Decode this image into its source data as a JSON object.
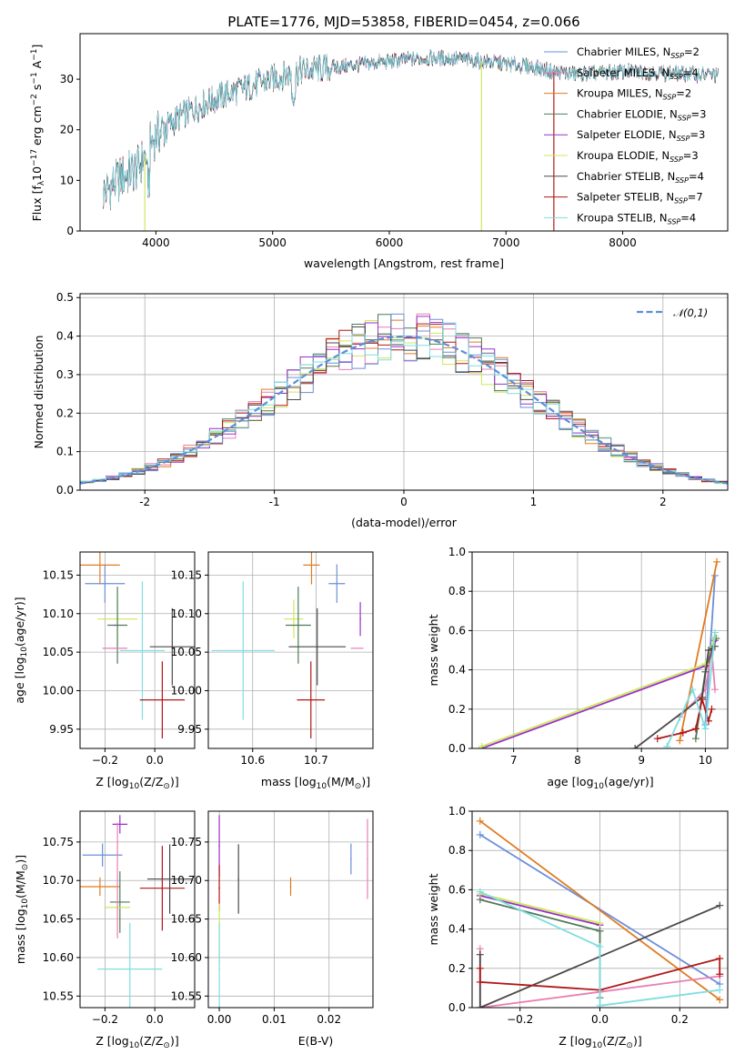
{
  "colors": {
    "chabrier_miles": "#6b8fd9",
    "salpeter_miles": "#e87fb4",
    "kroupa_miles": "#e07b20",
    "chabrier_elodie": "#4f7a55",
    "salpeter_elodie": "#9a30c8",
    "kroupa_elodie": "#cde85a",
    "chabrier_stelib": "#4a4a4a",
    "salpeter_stelib": "#b01818",
    "kroupa_stelib": "#7fdde0",
    "normal_curve": "#5b8fd6"
  },
  "models": [
    {
      "key": "chabrier_miles",
      "label": "Chabrier MILES, N",
      "n": "=2"
    },
    {
      "key": "salpeter_miles",
      "label": "Salpeter MILES, N",
      "n": "=4"
    },
    {
      "key": "kroupa_miles",
      "label": "Kroupa MILES, N",
      "n": "=2"
    },
    {
      "key": "chabrier_elodie",
      "label": "Chabrier ELODIE, N",
      "n": "=3"
    },
    {
      "key": "salpeter_elodie",
      "label": "Salpeter ELODIE, N",
      "n": "=3"
    },
    {
      "key": "kroupa_elodie",
      "label": "Kroupa ELODIE, N",
      "n": "=3"
    },
    {
      "key": "chabrier_stelib",
      "label": "Chabrier STELIB, N",
      "n": "=4"
    },
    {
      "key": "salpeter_stelib",
      "label": "Salpeter STELIB, N",
      "n": "=7"
    },
    {
      "key": "kroupa_stelib",
      "label": "Kroupa STELIB, N",
      "n": "=4"
    }
  ],
  "legend_subscript": "SSP",
  "chart_data": [
    {
      "type": "line",
      "title": "PLATE=1776, MJD=53858, FIBERID=0454, z=0.066",
      "xlabel": "wavelength [Angstrom, rest frame]",
      "ylabel": "Flux [f",
      "ylabel_units": "10",
      "ylabel_exp": "−17",
      "ylabel_rest": " erg cm",
      "ylabel_exp2": "−2",
      "ylabel_s": " s",
      "ylabel_exp3": "−1",
      "ylabel_end": " A",
      "ylabel_exp4": "−1",
      "ylabel_close": "]",
      "xlim": [
        3350,
        8900
      ],
      "ylim": [
        0,
        39
      ],
      "xticks": [
        4000,
        5000,
        6000,
        7000,
        8000
      ],
      "yticks": [
        0,
        10,
        20,
        30
      ],
      "envelope_x": [
        3550,
        3700,
        3850,
        4000,
        4200,
        4400,
        4600,
        4800,
        5000,
        5200,
        5400,
        5600,
        5800,
        6000,
        6200,
        6400,
        6600,
        6800,
        7000,
        7200,
        7400,
        7600,
        7800,
        8000,
        8200,
        8400,
        8600,
        8800
      ],
      "envelope_y": [
        7.5,
        10.5,
        12.5,
        19.0,
        22.5,
        25.0,
        27.0,
        28.5,
        30.0,
        31.5,
        32.0,
        32.5,
        33.0,
        33.5,
        34.0,
        34.2,
        34.0,
        33.5,
        33.0,
        32.5,
        31.5,
        31.0,
        31.2,
        31.5,
        31.4,
        31.2,
        31.0,
        30.8
      ]
    },
    {
      "type": "step",
      "xlabel": "(data-model)/error",
      "ylabel": "Normed distribution",
      "xlim": [
        -2.5,
        2.5
      ],
      "ylim": [
        0,
        0.51
      ],
      "xticks": [
        -2,
        -1,
        0,
        1,
        2
      ],
      "yticks": [
        0.0,
        0.1,
        0.2,
        0.3,
        0.4,
        0.5
      ],
      "bin_width": 0.1,
      "legend": "𝒩(0,1)"
    },
    {
      "type": "errorbar",
      "xlabel": "Z [log",
      "xlabel_sub": "10",
      "xlabel_end": "(Z/Z",
      "xlabel_close": ")]",
      "ylabel": "age  [log",
      "ylabel_sub": "10",
      "ylabel_end": "(age/yr)]",
      "xlim": [
        -0.3,
        0.16
      ],
      "ylim": [
        9.925,
        10.18
      ],
      "xticks": [
        -0.2,
        0.0
      ],
      "xticklabels": [
        "−0.2",
        "0.0"
      ],
      "yticks": [
        9.95,
        10.0,
        10.05,
        10.1,
        10.15
      ],
      "yticklabels": [
        "9.95",
        "10.00",
        "10.05",
        "10.10",
        "10.15"
      ],
      "points": [
        {
          "key": "chabrier_miles",
          "x": -0.2,
          "y": 10.139,
          "xerr": 0.08,
          "yerr": 0.025
        },
        {
          "key": "kroupa_miles",
          "x": -0.22,
          "y": 10.163,
          "xerr": 0.08,
          "yerr": 0.025
        },
        {
          "key": "kroupa_elodie",
          "x": -0.15,
          "y": 10.093,
          "xerr": 0.08,
          "yerr": 0.025
        },
        {
          "key": "chabrier_elodie",
          "x": -0.15,
          "y": 10.085,
          "xerr": 0.04,
          "yerr": 0.05
        },
        {
          "key": "salpeter_elodie",
          "x": -0.16,
          "y": 10.085,
          "xerr": 0.0,
          "yerr": 0.0
        },
        {
          "key": "salpeter_miles",
          "x": -0.16,
          "y": 10.055,
          "xerr": 0.05,
          "yerr": 0.0
        },
        {
          "key": "kroupa_stelib",
          "x": -0.05,
          "y": 10.052,
          "xerr": 0.09,
          "yerr": 0.09
        },
        {
          "key": "chabrier_stelib",
          "x": 0.07,
          "y": 10.057,
          "xerr": 0.09,
          "yerr": 0.05
        },
        {
          "key": "salpeter_stelib",
          "x": 0.03,
          "y": 9.988,
          "xerr": 0.09,
          "yerr": 0.05
        }
      ]
    },
    {
      "type": "errorbar",
      "xlabel": "mass [log",
      "xlabel_sub": "10",
      "xlabel_end": "(M/M",
      "xlabel_close": ")]",
      "xlim": [
        10.53,
        10.79
      ],
      "ylim": [
        9.925,
        10.18
      ],
      "xticks": [
        10.6,
        10.7
      ],
      "xticklabels": [
        "10.6",
        "10.7"
      ],
      "yticks": [
        9.95,
        10.0,
        10.05,
        10.1,
        10.15
      ],
      "yticklabels": [
        "9.95",
        "10.00",
        "10.05",
        "10.10",
        "10.15"
      ],
      "points": [
        {
          "key": "kroupa_miles",
          "x": 10.693,
          "y": 10.163,
          "xerr": 0.013,
          "yerr": 0.025
        },
        {
          "key": "chabrier_miles",
          "x": 10.733,
          "y": 10.139,
          "xerr": 0.013,
          "yerr": 0.025
        },
        {
          "key": "salpeter_elodie",
          "x": 10.77,
          "y": 10.093,
          "xerr": 0.0,
          "yerr": 0.022
        },
        {
          "key": "kroupa_elodie",
          "x": 10.665,
          "y": 10.093,
          "xerr": 0.015,
          "yerr": 0.025
        },
        {
          "key": "chabrier_elodie",
          "x": 10.672,
          "y": 10.085,
          "xerr": 0.02,
          "yerr": 0.05
        },
        {
          "key": "salpeter_miles",
          "x": 10.765,
          "y": 10.055,
          "xerr": 0.01,
          "yerr": 0.0
        },
        {
          "key": "kroupa_stelib",
          "x": 10.585,
          "y": 10.052,
          "xerr": 0.05,
          "yerr": 0.09
        },
        {
          "key": "chabrier_stelib",
          "x": 10.702,
          "y": 10.057,
          "xerr": 0.045,
          "yerr": 0.05
        },
        {
          "key": "salpeter_stelib",
          "x": 10.692,
          "y": 9.988,
          "xerr": 0.022,
          "yerr": 0.05
        }
      ]
    },
    {
      "type": "line",
      "xlabel": "age  [log",
      "xlabel_sub": "10",
      "xlabel_end": "(age/yr)]",
      "ylabel": "mass weight",
      "xlim": [
        6.35,
        10.35
      ],
      "ylim": [
        0,
        1.0
      ],
      "xticks": [
        7,
        8,
        9,
        10
      ],
      "yticks": [
        0.0,
        0.2,
        0.4,
        0.6,
        0.8,
        1.0
      ],
      "series": [
        {
          "key": "chabrier_miles",
          "x": [
            10.0,
            10.15
          ],
          "y": [
            0.12,
            0.88
          ]
        },
        {
          "key": "salpeter_miles",
          "x": [
            9.6,
            10.0,
            10.1,
            10.15
          ],
          "y": [
            0.16,
            0.3,
            0.5,
            0.3
          ]
        },
        {
          "key": "kroupa_miles",
          "x": [
            9.6,
            10.18
          ],
          "y": [
            0.04,
            0.95
          ]
        },
        {
          "key": "chabrier_elodie",
          "x": [
            9.85,
            10.0,
            10.17
          ],
          "y": [
            0.05,
            0.39,
            0.56
          ]
        },
        {
          "key": "salpeter_elodie",
          "x": [
            6.5,
            10.0,
            10.15
          ],
          "y": [
            0.0,
            0.42,
            0.55
          ]
        },
        {
          "key": "kroupa_elodie",
          "x": [
            6.5,
            10.0,
            10.15
          ],
          "y": [
            0.01,
            0.43,
            0.57
          ]
        },
        {
          "key": "chabrier_stelib",
          "x": [
            8.9,
            9.95,
            10.05,
            10.15
          ],
          "y": [
            0.0,
            0.26,
            0.5,
            0.52
          ]
        },
        {
          "key": "salpeter_stelib",
          "x": [
            9.25,
            9.65,
            9.85,
            9.95,
            10.05,
            10.1
          ],
          "y": [
            0.05,
            0.08,
            0.1,
            0.25,
            0.14,
            0.2
          ]
        },
        {
          "key": "kroupa_stelib",
          "x": [
            9.4,
            9.8,
            10.0,
            10.15
          ],
          "y": [
            0.01,
            0.3,
            0.1,
            0.59
          ]
        }
      ]
    },
    {
      "type": "errorbar",
      "xlabel": "Z [log",
      "xlabel_sub": "10",
      "xlabel_end": "(Z/Z",
      "xlabel_close": ")]",
      "ylabel": "mass [log",
      "ylabel_sub": "10",
      "ylabel_end": "(M/M",
      "ylabel_close": ")]",
      "xlim": [
        -0.3,
        0.16
      ],
      "ylim": [
        10.535,
        10.79
      ],
      "xticks": [
        -0.2,
        0.0
      ],
      "xticklabels": [
        "−0.2",
        "0.0"
      ],
      "yticks": [
        10.55,
        10.6,
        10.65,
        10.7,
        10.75
      ],
      "yticklabels": [
        "10.55",
        "10.60",
        "10.65",
        "10.70",
        "10.75"
      ],
      "points": [
        {
          "key": "salpeter_elodie",
          "x": -0.14,
          "y": 10.773,
          "xerr": 0.03,
          "yerr": 0.012
        },
        {
          "key": "chabrier_miles",
          "x": -0.21,
          "y": 10.733,
          "xerr": 0.08,
          "yerr": 0.015
        },
        {
          "key": "kroupa_miles",
          "x": -0.22,
          "y": 10.692,
          "xerr": 0.08,
          "yerr": 0.012
        },
        {
          "key": "chabrier_elodie",
          "x": -0.14,
          "y": 10.672,
          "xerr": 0.04,
          "yerr": 0.04
        },
        {
          "key": "kroupa_elodie",
          "x": -0.15,
          "y": 10.665,
          "xerr": 0.05,
          "yerr": 0.02
        },
        {
          "key": "salpeter_miles",
          "x": -0.15,
          "y": 10.7,
          "xerr": 0.0,
          "yerr": 0.075
        },
        {
          "key": "chabrier_stelib",
          "x": 0.06,
          "y": 10.702,
          "xerr": 0.09,
          "yerr": 0.045
        },
        {
          "key": "salpeter_stelib",
          "x": 0.03,
          "y": 10.69,
          "xerr": 0.09,
          "yerr": 0.055
        },
        {
          "key": "kroupa_stelib",
          "x": -0.1,
          "y": 10.585,
          "xerr": 0.13,
          "yerr": 0.06
        }
      ]
    },
    {
      "type": "errorbar",
      "xlabel": "E(B-V)",
      "xlim": [
        -0.002,
        0.028
      ],
      "ylim": [
        10.535,
        10.79
      ],
      "xticks": [
        0.0,
        0.01,
        0.02
      ],
      "xticklabels": [
        "0.00",
        "0.01",
        "0.02"
      ],
      "yticks": [
        10.55,
        10.6,
        10.65,
        10.7,
        10.75
      ],
      "yticklabels": [
        "10.55",
        "10.60",
        "10.65",
        "10.70",
        "10.75"
      ],
      "points": [
        {
          "key": "salpeter_elodie",
          "x": 0.0,
          "y": 10.745,
          "xerr": 0.0,
          "yerr": 0.04
        },
        {
          "key": "salpeter_stelib",
          "x": 0.0,
          "y": 10.69,
          "xerr": 0.0,
          "yerr": 0.03
        },
        {
          "key": "kroupa_elodie",
          "x": 0.0,
          "y": 10.63,
          "xerr": 0.0,
          "yerr": 0.04
        },
        {
          "key": "kroupa_stelib",
          "x": 0.0,
          "y": 10.585,
          "xerr": 0.0,
          "yerr": 0.06
        },
        {
          "key": "chabrier_stelib",
          "x": 0.0035,
          "y": 10.702,
          "xerr": 0.0,
          "yerr": 0.045
        },
        {
          "key": "kroupa_miles",
          "x": 0.013,
          "y": 10.692,
          "xerr": 0.0,
          "yerr": 0.012
        },
        {
          "key": "chabrier_miles",
          "x": 0.024,
          "y": 10.728,
          "xerr": 0.0,
          "yerr": 0.02
        },
        {
          "key": "salpeter_miles",
          "x": 0.027,
          "y": 10.728,
          "xerr": 0.0,
          "yerr": 0.052
        }
      ]
    },
    {
      "type": "line",
      "xlabel": "Z [log",
      "xlabel_sub": "10",
      "xlabel_end": "(Z/Z",
      "xlabel_close": ")]",
      "ylabel": "mass weight",
      "xlim": [
        -0.32,
        0.32
      ],
      "ylim": [
        0,
        1.0
      ],
      "xticks": [
        -0.2,
        0.0,
        0.2
      ],
      "xticklabels": [
        "−0.2",
        "0.0",
        "0.2"
      ],
      "yticks": [
        0.0,
        0.2,
        0.4,
        0.6,
        0.8,
        1.0
      ],
      "series": [
        {
          "key": "chabrier_miles",
          "x": [
            -0.3,
            0.3
          ],
          "y": [
            0.88,
            0.12
          ]
        },
        {
          "key": "kroupa_miles",
          "x": [
            -0.3,
            0.3
          ],
          "y": [
            0.95,
            0.04
          ]
        },
        {
          "key": "salpeter_miles",
          "x": [
            -0.3,
            -0.3,
            0.0,
            0.3
          ],
          "y": [
            0.3,
            0.0,
            0.08,
            0.16
          ]
        },
        {
          "key": "chabrier_elodie",
          "x": [
            -0.3,
            0.0,
            0.0
          ],
          "y": [
            0.55,
            0.39,
            0.05
          ]
        },
        {
          "key": "salpeter_elodie",
          "x": [
            -0.3,
            0.0
          ],
          "y": [
            0.57,
            0.42
          ]
        },
        {
          "key": "kroupa_elodie",
          "x": [
            -0.3,
            0.0
          ],
          "y": [
            0.58,
            0.43
          ]
        },
        {
          "key": "chabrier_stelib",
          "x": [
            -0.3,
            -0.3,
            0.3
          ],
          "y": [
            0.27,
            0.0,
            0.52
          ]
        },
        {
          "key": "salpeter_stelib",
          "x": [
            -0.3,
            -0.3,
            0.0,
            0.3,
            0.3
          ],
          "y": [
            0.2,
            0.13,
            0.09,
            0.25,
            0.17
          ]
        },
        {
          "key": "kroupa_stelib",
          "x": [
            -0.3,
            0.0,
            0.0,
            0.3
          ],
          "y": [
            0.59,
            0.31,
            0.01,
            0.09
          ]
        }
      ]
    }
  ]
}
